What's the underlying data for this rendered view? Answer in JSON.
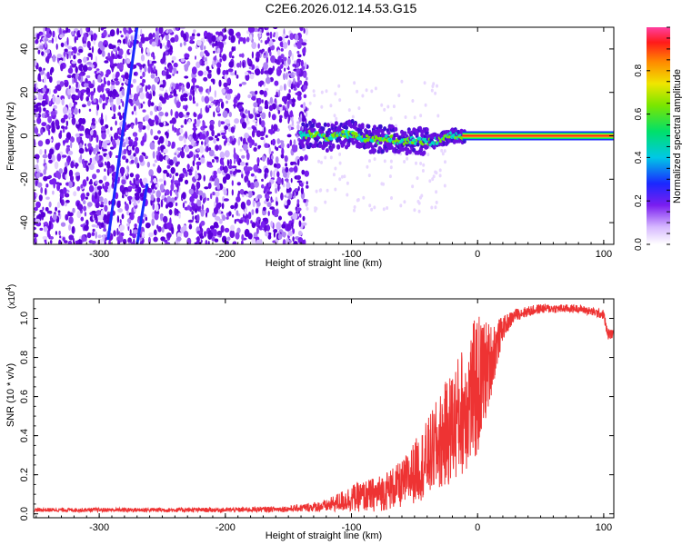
{
  "title": "C2E6.2026.012.14.53.G15",
  "chart_data": [
    {
      "type": "heatmap",
      "xlabel": "Height of straight line (km)",
      "ylabel": "Frequency (Hz)",
      "xlim": [
        -352,
        108
      ],
      "ylim": [
        -50,
        50
      ],
      "xticks": [
        -300,
        -200,
        -100,
        0,
        100
      ],
      "yticks": [
        -40,
        -20,
        0,
        20,
        40
      ],
      "noise_region_x": [
        -352,
        -135
      ],
      "signal_trace": [
        {
          "x": -140,
          "y": 0
        },
        {
          "x": -130,
          "y": 1
        },
        {
          "x": -120,
          "y": -1
        },
        {
          "x": -110,
          "y": 0
        },
        {
          "x": -100,
          "y": 1
        },
        {
          "x": -90,
          "y": -1
        },
        {
          "x": -80,
          "y": -2
        },
        {
          "x": -70,
          "y": -1
        },
        {
          "x": -60,
          "y": -3
        },
        {
          "x": -50,
          "y": -2
        },
        {
          "x": -40,
          "y": -3
        },
        {
          "x": -30,
          "y": -2
        },
        {
          "x": -20,
          "y": 0
        },
        {
          "x": -10,
          "y": 0
        },
        {
          "x": 0,
          "y": 2
        },
        {
          "x": 10,
          "y": 0
        },
        {
          "x": 50,
          "y": 0
        },
        {
          "x": 108,
          "y": 0
        }
      ],
      "tracks": [
        {
          "x1": -293,
          "y1": -48,
          "x2": -270,
          "y2": 50
        },
        {
          "x1": -270,
          "y1": -50,
          "x2": -262,
          "y2": -22
        }
      ],
      "colorbar": {
        "label": "Normalized spectral amplitude",
        "range": [
          0,
          1
        ],
        "ticks": [
          "0.0",
          "0.2",
          "0.4",
          "0.6",
          "0.8"
        ]
      }
    },
    {
      "type": "line",
      "xlabel": "Height of straight line (km)",
      "ylabel": "SNR (10 * v/v)",
      "yscale": "(x10",
      "yscale_exp": "4",
      "xlim": [
        -352,
        108
      ],
      "ylim": [
        -0.02,
        1.1
      ],
      "xticks": [
        -300,
        -200,
        -100,
        0,
        100
      ],
      "yticks": [
        "0.0",
        "0.2",
        "0.4",
        "0.6",
        "0.8",
        "1.0"
      ],
      "color": "#ee3333",
      "envelope": [
        {
          "x": -352,
          "mean": 0.02,
          "amp": 0.01
        },
        {
          "x": -200,
          "mean": 0.02,
          "amp": 0.012
        },
        {
          "x": -150,
          "mean": 0.025,
          "amp": 0.015
        },
        {
          "x": -120,
          "mean": 0.04,
          "amp": 0.03
        },
        {
          "x": -100,
          "mean": 0.08,
          "amp": 0.07
        },
        {
          "x": -80,
          "mean": 0.1,
          "amp": 0.09
        },
        {
          "x": -60,
          "mean": 0.15,
          "amp": 0.12
        },
        {
          "x": -40,
          "mean": 0.28,
          "amp": 0.2
        },
        {
          "x": -20,
          "mean": 0.45,
          "amp": 0.3
        },
        {
          "x": 0,
          "mean": 0.65,
          "amp": 0.38
        },
        {
          "x": 10,
          "mean": 0.78,
          "amp": 0.2
        },
        {
          "x": 20,
          "mean": 0.95,
          "amp": 0.06
        },
        {
          "x": 30,
          "mean": 1.02,
          "amp": 0.03
        },
        {
          "x": 50,
          "mean": 1.05,
          "amp": 0.025
        },
        {
          "x": 80,
          "mean": 1.05,
          "amp": 0.02
        },
        {
          "x": 100,
          "mean": 1.02,
          "amp": 0.025
        },
        {
          "x": 103,
          "mean": 0.92,
          "amp": 0.03
        },
        {
          "x": 108,
          "mean": 0.92,
          "amp": 0.02
        }
      ]
    }
  ]
}
